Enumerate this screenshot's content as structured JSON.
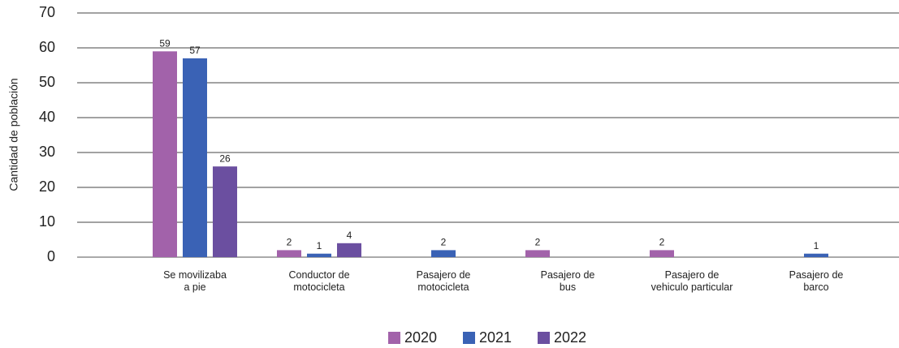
{
  "chart_data": {
    "type": "bar",
    "y_label": "Cantidad de población",
    "categories": [
      "Se movilizaba\na pie",
      "Conductor de\nmotocicleta",
      "Pasajero de\nmotocicleta",
      "Pasajero de\nbus",
      "Pasajero de\nvehiculo particular",
      "Pasajero de\nbarco"
    ],
    "series": [
      {
        "name": "2020",
        "color": "#a262aa",
        "values": [
          59,
          2,
          null,
          2,
          2,
          null
        ]
      },
      {
        "name": "2021",
        "color": "#3a62b5",
        "values": [
          57,
          1,
          2,
          null,
          null,
          1
        ]
      },
      {
        "name": "2022",
        "color": "#6b4fa0",
        "values": [
          26,
          4,
          null,
          null,
          null,
          null
        ]
      }
    ],
    "ylim": [
      0,
      70
    ],
    "yticks": [
      0,
      10,
      20,
      30,
      40,
      50,
      60,
      70
    ],
    "grid": true,
    "legend": "bottom"
  }
}
